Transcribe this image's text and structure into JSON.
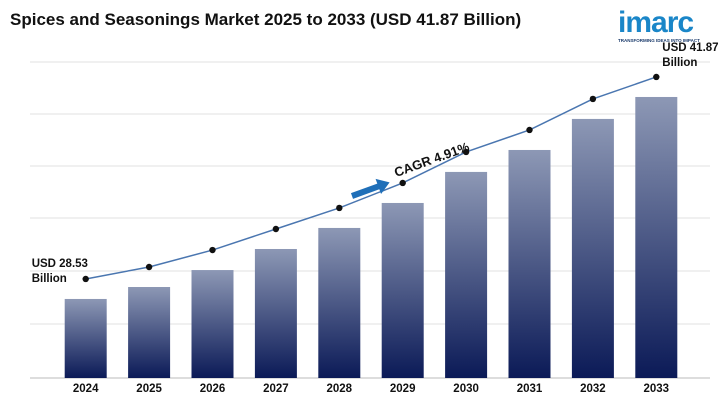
{
  "chart_data": {
    "type": "bar",
    "title": "Spices and Seasonings Market 2025 to 2033 (USD 41.87 Billion)",
    "categories": [
      "2024",
      "2025",
      "2026",
      "2027",
      "2028",
      "2029",
      "2030",
      "2031",
      "2032",
      "2033"
    ],
    "values": [
      28.53,
      29.32,
      30.44,
      31.83,
      33.22,
      34.87,
      36.92,
      38.37,
      40.42,
      41.87
    ],
    "ylim": [
      23.31,
      44.18
    ],
    "color_top": "#8d98b5",
    "color_bottom": "#0b1a57",
    "line_color": "#4a76b0",
    "annotations": [
      {
        "text": "USD 28.53 Billion",
        "category": 0
      },
      {
        "text": "USD 41.87 Billion",
        "category": 9
      }
    ],
    "cagr_label": "CAGR 4.91%",
    "logo": {
      "name": "imarc",
      "tagline": "TRANSFORMING IDEAS INTO IMPACT"
    }
  }
}
